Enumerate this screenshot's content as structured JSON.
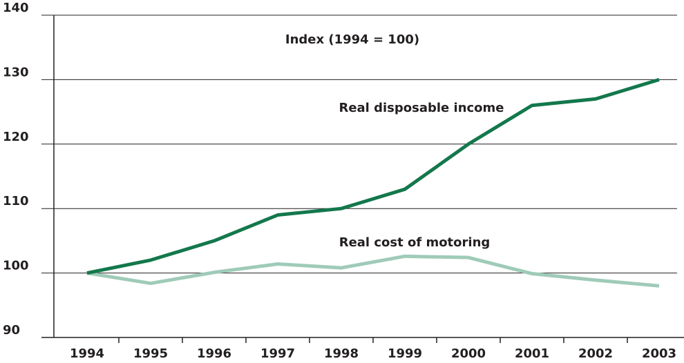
{
  "chart_data": {
    "type": "line",
    "annotation": "Index (1994 = 100)",
    "categories": [
      "1994",
      "1995",
      "1996",
      "1997",
      "1998",
      "1999",
      "2000",
      "2001",
      "2002",
      "2003"
    ],
    "series": [
      {
        "name": "Real disposable income",
        "color": "#13784c",
        "values": [
          100,
          102,
          105,
          109,
          110,
          113,
          120,
          126,
          127,
          130
        ]
      },
      {
        "name": "Real cost of motoring",
        "color": "#9fcbb9",
        "values": [
          100,
          98.4,
          100.1,
          101.4,
          100.8,
          102.6,
          102.4,
          99.9,
          98.9,
          98.0
        ]
      }
    ],
    "ylim": [
      90,
      140
    ],
    "yticks": [
      90,
      100,
      110,
      120,
      130,
      140
    ],
    "grid": true
  }
}
